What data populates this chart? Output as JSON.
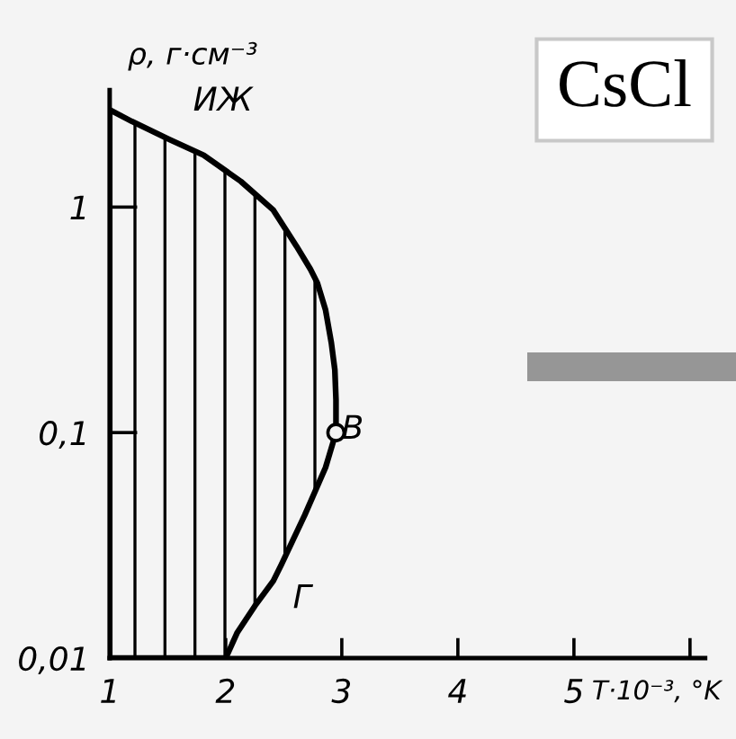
{
  "chart_data": {
    "type": "area",
    "title": "CsCl",
    "xlabel": "T·10⁻³, °K",
    "ylabel": "ρ, г·см⁻³",
    "log": "y",
    "xlim": [
      1,
      6.13
    ],
    "ylim": [
      0.01,
      3.3
    ],
    "xticks": [
      1,
      2,
      3,
      4,
      5,
      {
        "value": 6,
        "label": null
      }
    ],
    "yticks": [
      {
        "value": 0.01,
        "label": "0,01"
      },
      {
        "value": 0.1,
        "label": "0,1"
      },
      {
        "value": 1,
        "label": "1"
      }
    ],
    "series": [
      {
        "color": "#000000",
        "x": [
          1.0,
          1.19,
          1.51,
          1.81,
          2.13,
          2.41,
          2.61,
          2.73,
          2.79,
          2.86,
          2.91,
          2.94,
          2.95,
          2.95,
          2.86,
          2.68,
          2.48,
          2.41,
          2.25,
          2.1,
          2.0
        ],
        "values": [
          2.7,
          2.4,
          2.0,
          1.7,
          1.3,
          0.97,
          0.67,
          0.53,
          0.46,
          0.35,
          0.25,
          0.19,
          0.14,
          0.1,
          0.07,
          0.043,
          0.026,
          0.022,
          0.017,
          0.013,
          0.01
        ]
      },
      {
        "type": "scatter",
        "color": "#000000",
        "marker": "circle",
        "x": [
          2.95
        ],
        "values": [
          0.1
        ]
      }
    ],
    "annotations": [
      "ИЖ",
      "В",
      "Г"
    ]
  }
}
